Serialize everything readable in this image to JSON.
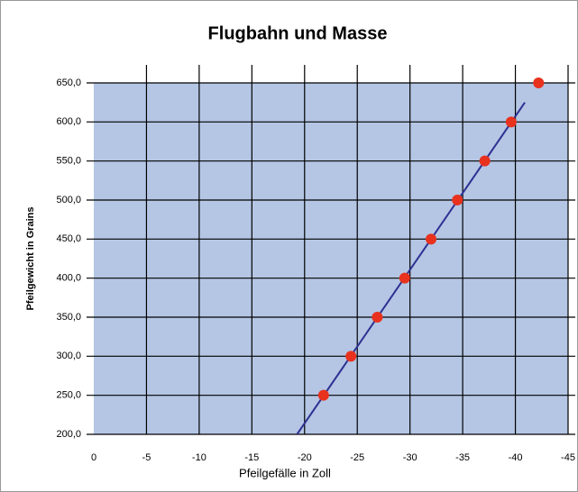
{
  "chart_data": {
    "type": "scatter",
    "title": "Flugbahn und Masse",
    "xlabel": "Pfeilgefälle in Zoll",
    "ylabel": "Pfeilgewicht in Grains",
    "x": [
      -21.8,
      -24.4,
      -26.9,
      -29.5,
      -32.0,
      -34.5,
      -37.1,
      -39.6,
      -42.2
    ],
    "values": [
      250,
      300,
      350,
      400,
      450,
      500,
      550,
      600,
      650
    ],
    "color": "#e8321e",
    "line_color": "#2e3192",
    "trendline": true,
    "plot_background": "#b4c6e4",
    "grid": true,
    "xlim": [
      0,
      -45
    ],
    "xticks": [
      0,
      -5,
      -10,
      -15,
      -20,
      -25,
      -30,
      -35,
      -40,
      -45
    ],
    "ylim": [
      200,
      650
    ],
    "yticks": [
      {
        "value": 200,
        "label": "200,0"
      },
      {
        "value": 250,
        "label": "250,0"
      },
      {
        "value": 300,
        "label": "300,0"
      },
      {
        "value": 350,
        "label": "350,0"
      },
      {
        "value": 400,
        "label": "400,0"
      },
      {
        "value": 450,
        "label": "450,0"
      },
      {
        "value": 500,
        "label": "500,0"
      },
      {
        "value": 550,
        "label": "550,0"
      },
      {
        "value": 600,
        "label": "600,0"
      },
      {
        "value": 650,
        "label": "650,0"
      }
    ]
  }
}
